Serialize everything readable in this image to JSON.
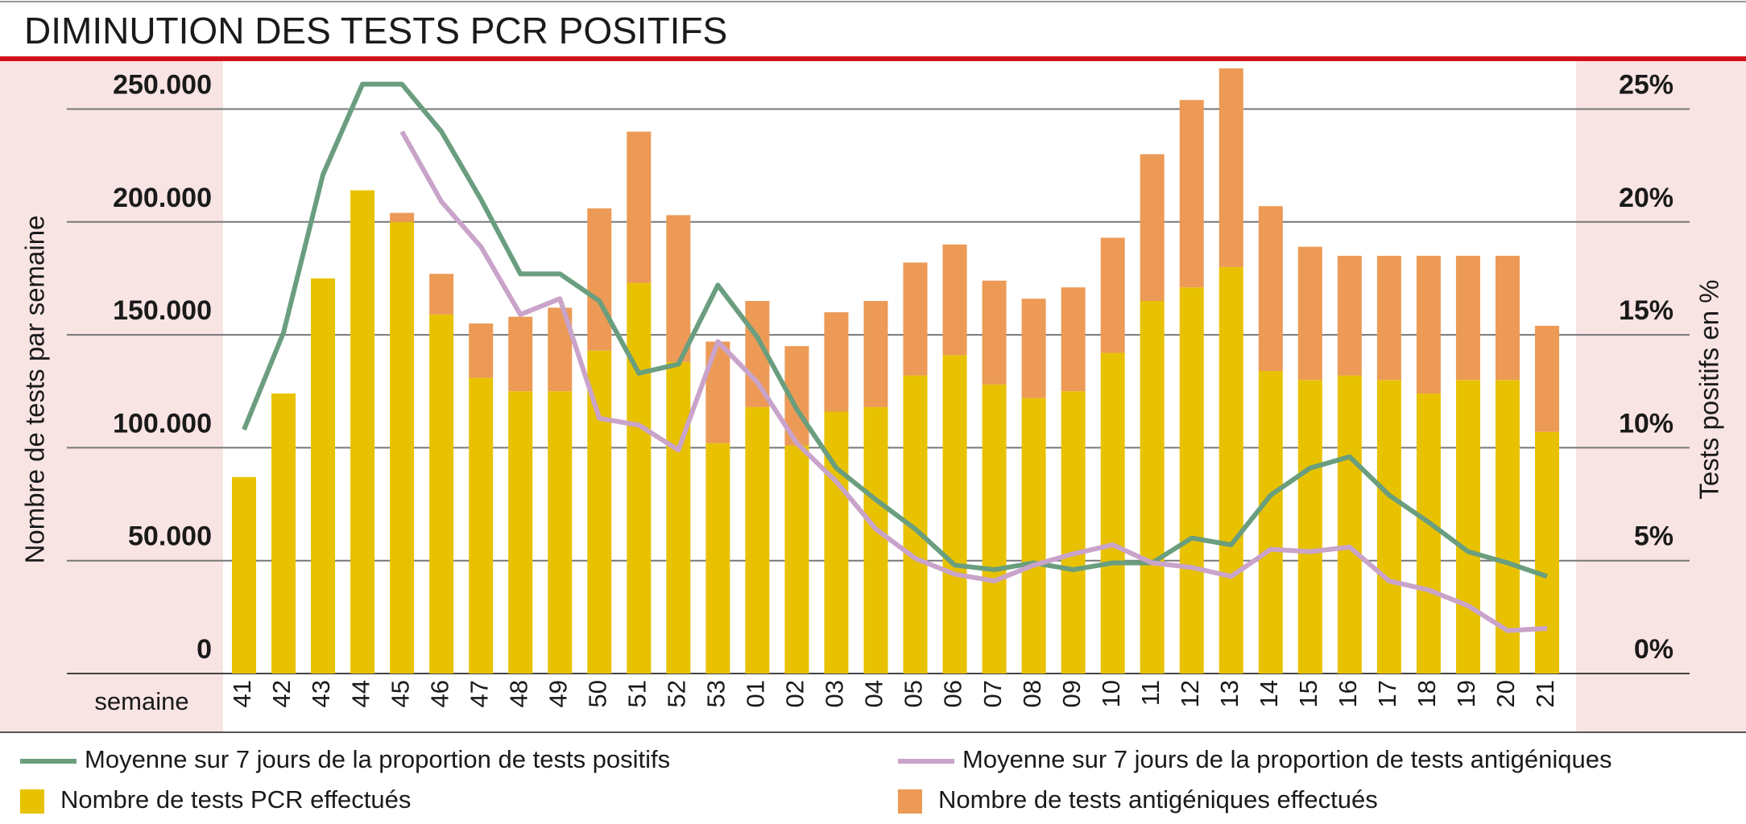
{
  "chart_data": {
    "type": "bar",
    "stacked": true,
    "title": "DIMINUTION DES TESTS PCR POSITIFS",
    "x_label": "semaine",
    "y_label": "Nombre de tests par semaine",
    "y2_label": "Tests positifs en %",
    "categories": [
      "41",
      "42",
      "43",
      "44",
      "45",
      "46",
      "47",
      "48",
      "49",
      "50",
      "51",
      "52",
      "53",
      "01",
      "02",
      "03",
      "04",
      "05",
      "06",
      "07",
      "08",
      "09",
      "10",
      "11",
      "12",
      "13",
      "14",
      "15",
      "16",
      "17",
      "18",
      "19",
      "20",
      "21"
    ],
    "ylim": [
      0,
      250000
    ],
    "yticks": [
      0,
      {
        "value": 50000,
        "label": "50.000"
      },
      {
        "value": 100000,
        "label": "100.000"
      },
      {
        "value": 150000,
        "label": "150.000"
      },
      {
        "value": 200000,
        "label": "200.000"
      },
      {
        "value": 250000,
        "label": "250.000"
      }
    ],
    "y2lim": [
      0,
      25
    ],
    "y2ticks": [
      {
        "value": 0,
        "label": "0%"
      },
      {
        "value": 5,
        "label": "5%"
      },
      {
        "value": 10,
        "label": "10%"
      },
      {
        "value": 15,
        "label": "15%"
      },
      {
        "value": 20,
        "label": "20%"
      },
      {
        "value": 25,
        "label": "25%"
      }
    ],
    "grid": true,
    "series": [
      {
        "name": "Nombre de tests PCR effectués",
        "type": "bar",
        "color": "#e8c200",
        "values": [
          87000,
          124000,
          175000,
          214000,
          200000,
          159000,
          131000,
          125000,
          125000,
          143000,
          173000,
          138000,
          102000,
          118000,
          101000,
          116000,
          118000,
          132000,
          141000,
          128000,
          122000,
          125000,
          142000,
          165000,
          171000,
          180000,
          134000,
          130000,
          132000,
          130000,
          124000,
          130000,
          130000,
          107000
        ]
      },
      {
        "name": "Nombre de tests antigéniques effectués",
        "type": "bar",
        "color": "#ec9a56",
        "values": [
          null,
          null,
          null,
          null,
          4000,
          18000,
          24000,
          33000,
          37000,
          63000,
          67000,
          65000,
          45000,
          47000,
          44000,
          44000,
          47000,
          50000,
          49000,
          46000,
          44000,
          46000,
          51000,
          65000,
          83000,
          88000,
          73000,
          59000,
          53000,
          55000,
          61000,
          55000,
          55000,
          47000
        ]
      },
      {
        "name": "Moyenne sur 7 jours de la proportion de tests positifs",
        "type": "line",
        "axis": "y2",
        "color": "#6a9e7e",
        "values": [
          10.8,
          15.1,
          22.1,
          26.1,
          26.1,
          24.0,
          21.0,
          17.7,
          17.7,
          16.5,
          13.3,
          13.7,
          17.2,
          14.9,
          11.7,
          9.1,
          7.7,
          6.4,
          4.8,
          4.6,
          4.9,
          4.6,
          4.9,
          4.9,
          6.0,
          5.7,
          7.9,
          9.1,
          9.6,
          7.9,
          6.7,
          5.4,
          4.9,
          4.3
        ]
      },
      {
        "name": "Moyenne sur 7 jours de la proportion de tests antigéniques",
        "type": "line",
        "axis": "y2",
        "color": "#c9a3c9",
        "values": [
          null,
          null,
          null,
          null,
          24.0,
          20.9,
          18.9,
          15.9,
          16.6,
          11.3,
          11.0,
          9.9,
          14.7,
          12.9,
          10.2,
          8.5,
          6.4,
          5.1,
          4.4,
          4.1,
          4.8,
          5.3,
          5.7,
          4.9,
          4.7,
          4.3,
          5.5,
          5.4,
          5.6,
          4.1,
          3.7,
          3.0,
          1.9,
          2.0
        ]
      }
    ]
  }
}
